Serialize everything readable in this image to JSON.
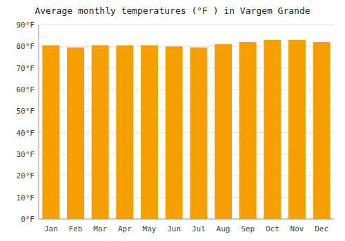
{
  "chart_data": {
    "type": "bar",
    "title": "Average monthly temperatures (°F ) in Vargem Grande",
    "categories": [
      "Jan",
      "Feb",
      "Mar",
      "Apr",
      "May",
      "Jun",
      "Jul",
      "Aug",
      "Sep",
      "Oct",
      "Nov",
      "Dec"
    ],
    "values": [
      80.5,
      79.5,
      80.5,
      80.5,
      80.5,
      80.0,
      79.5,
      81.0,
      82.0,
      83.0,
      83.0,
      82.0
    ],
    "color": "#F5A000",
    "ylim": [
      0,
      90
    ],
    "yticks": [
      {
        "value": 0,
        "label": "0°F"
      },
      {
        "value": 10,
        "label": "10°F"
      },
      {
        "value": 20,
        "label": "20°F"
      },
      {
        "value": 30,
        "label": "30°F"
      },
      {
        "value": 40,
        "label": "40°F"
      },
      {
        "value": 50,
        "label": "50°F"
      },
      {
        "value": 60,
        "label": "60°F"
      },
      {
        "value": 70,
        "label": "70°F"
      },
      {
        "value": 80,
        "label": "80°F"
      },
      {
        "value": 90,
        "label": "90°F"
      }
    ],
    "grid": true
  }
}
